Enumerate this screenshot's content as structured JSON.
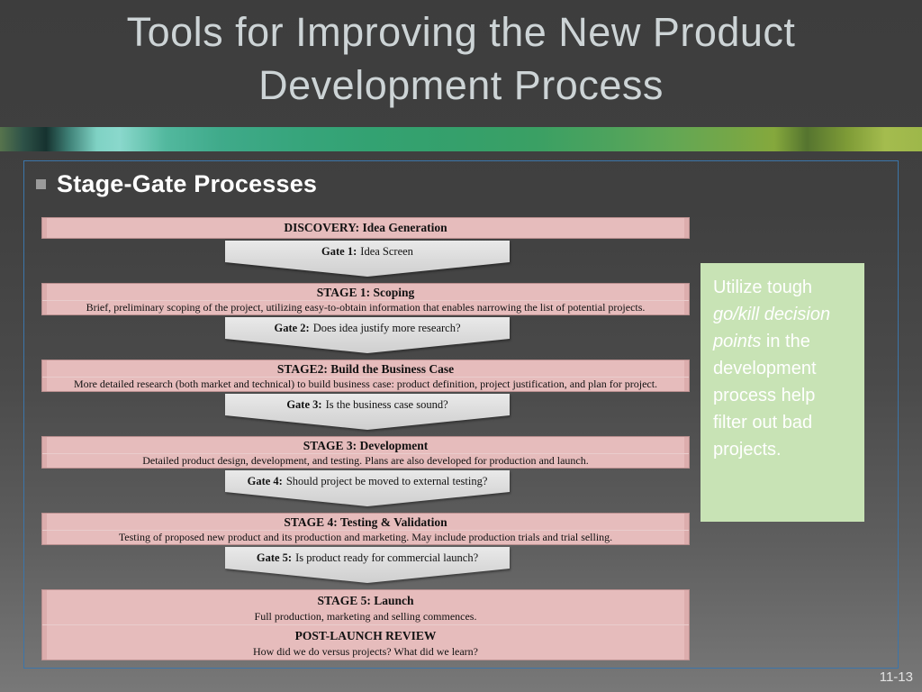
{
  "slide": {
    "title_line1": "Tools for Improving the New Product",
    "title_line2": "Development Process",
    "page_number": "11-13"
  },
  "content": {
    "heading": "Stage-Gate Processes",
    "note": {
      "text_before": "Utilize tough ",
      "text_italic": "go/kill decision points",
      "text_after": " in the development process help filter out bad projects."
    },
    "flow": {
      "discovery_title": "DISCOVERY: Idea Generation",
      "gates": [
        {
          "label": "Gate 1:",
          "question": "Idea Screen"
        },
        {
          "label": "Gate 2:",
          "question": "Does idea justify more research?"
        },
        {
          "label": "Gate 3:",
          "question": "Is the business case sound?"
        },
        {
          "label": "Gate 4:",
          "question": "Should project be moved to external testing?"
        },
        {
          "label": "Gate 5:",
          "question": "Is product ready for commercial launch?"
        }
      ],
      "stages": [
        {
          "title": "STAGE 1: Scoping",
          "desc": "Brief, preliminary scoping of the project, utilizing easy-to-obtain information that enables narrowing the list of potential projects."
        },
        {
          "title": "STAGE2: Build the Business Case",
          "desc": "More detailed research (both market and technical) to build business case: product definition, project justification, and plan for project."
        },
        {
          "title": "STAGE 3: Development",
          "desc": "Detailed product design, development, and testing. Plans are also developed for production and launch."
        },
        {
          "title": "STAGE 4: Testing & Validation",
          "desc": "Testing of proposed new product and its production and marketing. May include production trials and trial selling."
        },
        {
          "title": "STAGE 5: Launch",
          "desc": "Full production, marketing and selling commences."
        }
      ],
      "post_launch": {
        "title": "POST-LAUNCH REVIEW",
        "desc": "How did we do versus projects? What did we learn?"
      }
    },
    "colors": {
      "background_top": "#3d3d3d",
      "background_bottom": "#787878",
      "stage_fill": "#e6bcbc",
      "stage_border": "#b98f8f",
      "gate_fill": "#dadada",
      "note_fill": "#c8e3b5",
      "frame_border": "#3c75a9",
      "title_text": "#cdd4d6"
    }
  }
}
